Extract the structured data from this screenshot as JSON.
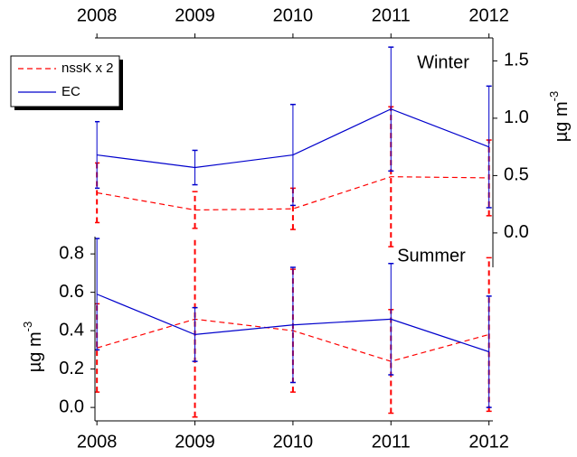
{
  "chart_data": [
    {
      "type": "line",
      "title": "Winter",
      "xaxis_side": "top",
      "yaxis_side": "right",
      "ylabel": "µg m",
      "ylabel_exponent": "-3",
      "x": [
        2008,
        2009,
        2010,
        2011,
        2012
      ],
      "xlim": [
        2007.98,
        2012.04
      ],
      "xticks": [
        2008,
        2009,
        2010,
        2011,
        2012
      ],
      "ylim": [
        -0.3,
        1.7
      ],
      "yticks": [
        {
          "value": 0,
          "label": "0.0"
        },
        0.5,
        {
          "value": 1,
          "label": "1.0"
        },
        1.5
      ],
      "legend": "upper left",
      "series": [
        {
          "name": "nssK x 2",
          "color": "#ff0000",
          "dashed": true,
          "values": [
            0.35,
            0.2,
            0.21,
            0.49,
            0.48
          ],
          "errors": [
            0.26,
            0.16,
            0.18,
            0.61,
            0.33
          ]
        },
        {
          "name": "EC",
          "color": "#0000cc",
          "dashed": false,
          "values": [
            0.68,
            0.57,
            0.68,
            1.08,
            0.75
          ],
          "errors": [
            0.29,
            0.15,
            0.44,
            0.54,
            0.53
          ]
        }
      ]
    },
    {
      "type": "line",
      "title": "Summer",
      "xaxis_side": "bottom",
      "yaxis_side": "left",
      "ylabel": "µg m",
      "ylabel_exponent": "-3",
      "x": [
        2008,
        2009,
        2010,
        2011,
        2012
      ],
      "xlim": [
        2007.98,
        2012.04
      ],
      "xticks": [
        2008,
        2009,
        2010,
        2011,
        2012
      ],
      "ylim": [
        -0.07,
        0.89
      ],
      "yticks": [
        {
          "value": 0,
          "label": "0.0"
        },
        0.2,
        0.4,
        0.6,
        0.8
      ],
      "series": [
        {
          "name": "nssK x 2",
          "color": "#ff0000",
          "dashed": true,
          "values": [
            0.31,
            0.46,
            0.4,
            0.24,
            0.38
          ],
          "errors": [
            0.23,
            0.51,
            0.32,
            0.27,
            0.4
          ]
        },
        {
          "name": "EC",
          "color": "#0000cc",
          "dashed": false,
          "values": [
            0.59,
            0.38,
            0.43,
            0.46,
            0.29
          ],
          "errors": [
            0.29,
            0.14,
            0.3,
            0.29,
            0.29
          ]
        }
      ]
    }
  ]
}
